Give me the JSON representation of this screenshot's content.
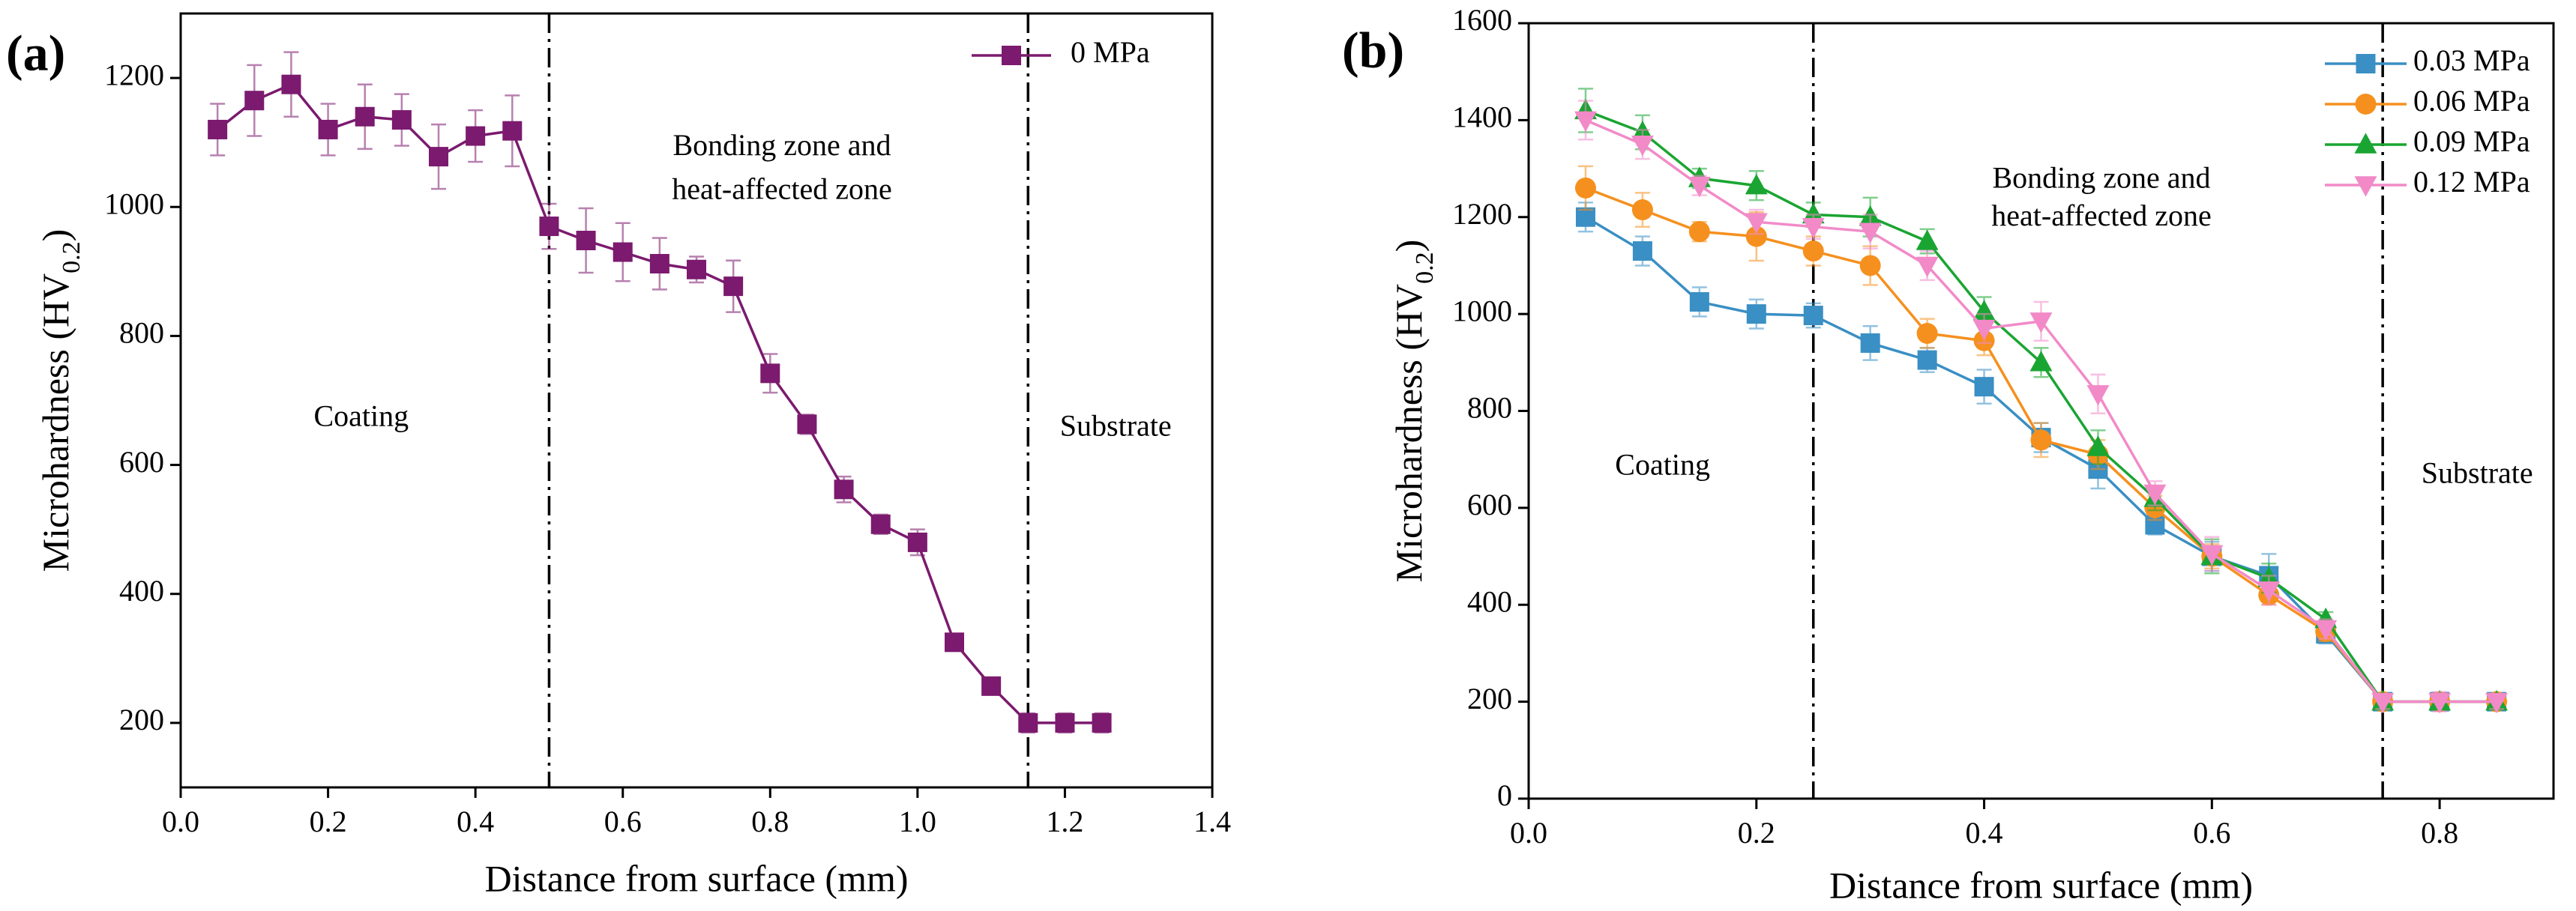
{
  "chart_data": [
    {
      "type": "line",
      "panel_label": "(a)",
      "x_label": "Distance from surface (mm)",
      "y_label": [
        "Microhardness (HV",
        "0.2",
        ")"
      ],
      "x": [
        0.05,
        0.1,
        0.15,
        0.2,
        0.25,
        0.3,
        0.35,
        0.4,
        0.45,
        0.5,
        0.55,
        0.6,
        0.65,
        0.7,
        0.75,
        0.8,
        0.85,
        0.9,
        0.95,
        1.0,
        1.05,
        1.1,
        1.15,
        1.2,
        1.25
      ],
      "series": [
        {
          "name": "0 MPa",
          "color": "#7b1a6e",
          "marker": "square",
          "values": [
            1120,
            1165,
            1190,
            1120,
            1140,
            1135,
            1078,
            1110,
            1118,
            970,
            948,
            930,
            912,
            903,
            877,
            742,
            663,
            562,
            508,
            480,
            325,
            257,
            200,
            200,
            200
          ],
          "errors": [
            40,
            55,
            50,
            40,
            50,
            40,
            50,
            40,
            55,
            35,
            50,
            45,
            40,
            20,
            40,
            30,
            15,
            20,
            15,
            20,
            10,
            10,
            15,
            15,
            15
          ]
        }
      ],
      "xlim": [
        0,
        1.4
      ],
      "xticks": [
        {
          "value": 0,
          "label": "0.0"
        },
        0.2,
        0.4,
        0.6,
        0.8,
        {
          "value": 1,
          "label": "1.0"
        },
        1.2,
        1.4
      ],
      "ylim": [
        100,
        1300
      ],
      "yticks": [
        200,
        400,
        600,
        800,
        1000,
        1200
      ],
      "vlines": [
        0.5,
        1.15
      ],
      "annotations": [
        "Coating",
        "Bonding zone and",
        "heat-affected zone",
        "Substrate"
      ],
      "legend": "upper right"
    },
    {
      "type": "line",
      "panel_label": "(b)",
      "x_label": "Distance from surface (mm)",
      "y_label": [
        "Microhardness (HV",
        "0.2",
        ")"
      ],
      "x": [
        0.05,
        0.1,
        0.15,
        0.2,
        0.25,
        0.3,
        0.35,
        0.4,
        0.45,
        0.5,
        0.55,
        0.6,
        0.65,
        0.7,
        0.75,
        0.8,
        0.85
      ],
      "series": [
        {
          "name": "0.03 MPa",
          "color": "#3a8fc4",
          "marker": "square",
          "values": [
            1200,
            1130,
            1025,
            1000,
            997,
            940,
            905,
            850,
            745,
            680,
            565,
            500,
            460,
            340,
            200,
            200,
            200
          ],
          "errors": [
            30,
            30,
            30,
            30,
            25,
            35,
            25,
            35,
            30,
            40,
            20,
            30,
            45,
            20,
            15,
            15,
            15
          ]
        },
        {
          "name": "0.06 MPa",
          "color": "#f5901e",
          "marker": "circle",
          "values": [
            1260,
            1215,
            1170,
            1160,
            1130,
            1100,
            960,
            945,
            740,
            710,
            600,
            500,
            420,
            345,
            200,
            200,
            200
          ],
          "errors": [
            45,
            35,
            20,
            50,
            30,
            40,
            30,
            30,
            35,
            30,
            25,
            25,
            20,
            20,
            15,
            15,
            15
          ]
        },
        {
          "name": "0.09 MPa",
          "color": "#1aa532",
          "marker": "triangle-up",
          "values": [
            1420,
            1375,
            1280,
            1265,
            1205,
            1200,
            1150,
            1005,
            900,
            725,
            620,
            500,
            455,
            370,
            200,
            200,
            200
          ],
          "errors": [
            45,
            35,
            20,
            30,
            25,
            40,
            25,
            30,
            30,
            35,
            25,
            35,
            30,
            15,
            15,
            15,
            15
          ]
        },
        {
          "name": "0.12 MPa",
          "color": "#f28ac8",
          "marker": "triangle-down",
          "values": [
            1400,
            1350,
            1265,
            1190,
            1180,
            1170,
            1100,
            970,
            985,
            835,
            630,
            505,
            430,
            350,
            200,
            200,
            200
          ],
          "errors": [
            40,
            30,
            20,
            25,
            25,
            35,
            30,
            30,
            40,
            40,
            25,
            35,
            30,
            20,
            15,
            20,
            15
          ]
        }
      ],
      "xlim": [
        0,
        0.9
      ],
      "xticks": [
        {
          "value": 0,
          "label": "0.0"
        },
        0.2,
        0.4,
        0.6,
        0.8
      ],
      "ylim": [
        0,
        1600
      ],
      "yticks": [
        0,
        200,
        400,
        600,
        800,
        1000,
        1200,
        1400,
        1600
      ],
      "vlines": [
        0.25,
        0.75
      ],
      "annotations": [
        "Coating",
        "Bonding zone and",
        "heat-affected zone",
        "Substrate"
      ],
      "legend": "upper right"
    }
  ]
}
